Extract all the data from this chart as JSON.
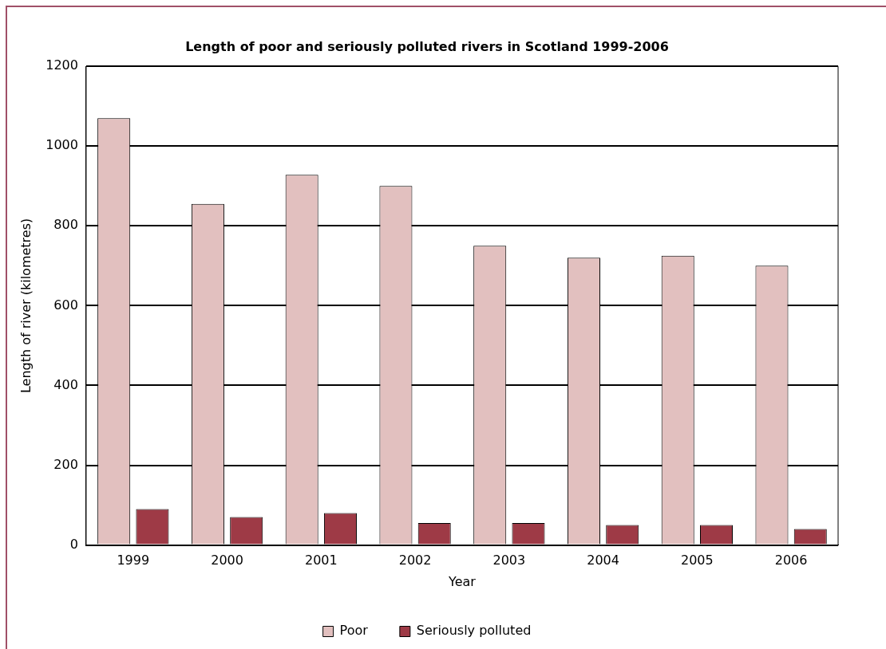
{
  "chart_data": {
    "type": "bar",
    "title": "Length of poor and seriously polluted rivers in Scotland 1999-2006",
    "xlabel": "Year",
    "ylabel": "Length of river (kilometres)",
    "categories": [
      "1999",
      "2000",
      "2001",
      "2002",
      "2003",
      "2004",
      "2005",
      "2006"
    ],
    "series": [
      {
        "name": "Poor",
        "color": "#e2c0bf",
        "values": [
          1070,
          855,
          928,
          900,
          750,
          720,
          725,
          700
        ]
      },
      {
        "name": "Seriously polluted",
        "color": "#9e3a46",
        "values": [
          90,
          70,
          80,
          55,
          55,
          50,
          50,
          40
        ]
      }
    ],
    "ylim": [
      0,
      1200
    ],
    "yticks": [
      0,
      200,
      400,
      600,
      800,
      1000,
      1200
    ],
    "grid": "y",
    "legend": "bottom"
  }
}
